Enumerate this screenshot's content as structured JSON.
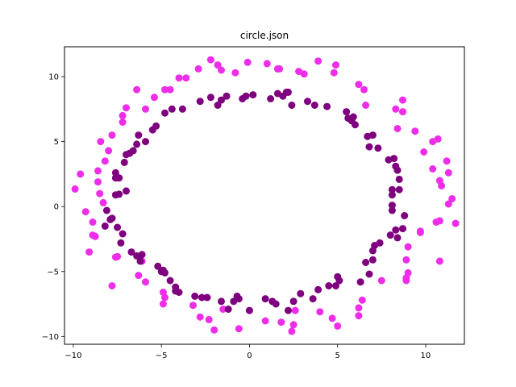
{
  "chart_data": {
    "type": "scatter",
    "title": "circle.json",
    "xlabel": "",
    "ylabel": "",
    "xlim": [
      -10.5,
      12.2
    ],
    "ylim": [
      -10.6,
      12.3
    ],
    "xticks": [
      -10,
      -5,
      0,
      5,
      10
    ],
    "xtick_labels": [
      "−10",
      "−5",
      "0",
      "5",
      "10"
    ],
    "yticks": [
      -10,
      -5,
      0,
      5,
      10
    ],
    "ytick_labels": [
      "−10",
      "−5",
      "0",
      "5",
      "10"
    ],
    "grid": false,
    "legend": false,
    "series": [
      {
        "color": "#ee2de9",
        "points": [
          [
            -9.9,
            1.35
          ],
          [
            -9.6,
            2.5
          ],
          [
            -9.3,
            -0.4
          ],
          [
            -9.1,
            -3.5
          ],
          [
            -8.9,
            -1.2
          ],
          [
            -8.9,
            -2.2
          ],
          [
            -8.75,
            -2.3
          ],
          [
            -8.6,
            1.9
          ],
          [
            -8.6,
            2.75
          ],
          [
            -8.5,
            1.0
          ],
          [
            -8.45,
            5.0
          ],
          [
            -8.3,
            0.3
          ],
          [
            -8.2,
            3.5
          ],
          [
            -8.0,
            4.3
          ],
          [
            -7.8,
            5.5
          ],
          [
            -7.8,
            -6.1
          ],
          [
            -7.6,
            -3.9
          ],
          [
            -7.5,
            -3.85
          ],
          [
            -7.2,
            6.5
          ],
          [
            -7.2,
            7.0
          ],
          [
            -7.0,
            7.6
          ],
          [
            -6.4,
            9.0
          ],
          [
            -6.3,
            -5.3
          ],
          [
            -6.1,
            -4.2
          ],
          [
            -5.9,
            -5.8
          ],
          [
            -5.9,
            7.5
          ],
          [
            -5.4,
            8.4
          ],
          [
            -4.9,
            -6.6
          ],
          [
            -4.9,
            -7.5
          ],
          [
            -4.8,
            -7.0
          ],
          [
            -4.8,
            9.0
          ],
          [
            -4.5,
            9.0
          ],
          [
            -4.0,
            9.9
          ],
          [
            -3.6,
            9.9
          ],
          [
            -3.2,
            -7.6
          ],
          [
            -2.9,
            10.6
          ],
          [
            -2.8,
            -8.5
          ],
          [
            -2.3,
            -8.7
          ],
          [
            -2.2,
            11.3
          ],
          [
            -2.0,
            -9.5
          ],
          [
            -1.8,
            10.9
          ],
          [
            -1.6,
            10.5
          ],
          [
            -1.5,
            -7.9
          ],
          [
            -0.8,
            10.3
          ],
          [
            -0.6,
            -9.4
          ],
          [
            -0.1,
            11.1
          ],
          [
            0.9,
            -8.8
          ],
          [
            1.0,
            11.0
          ],
          [
            1.6,
            10.6
          ],
          [
            1.7,
            10.6
          ],
          [
            1.8,
            -8.9
          ],
          [
            2.4,
            -9.6
          ],
          [
            2.5,
            -9.1
          ],
          [
            2.6,
            -8.0
          ],
          [
            2.8,
            10.4
          ],
          [
            3.1,
            10.2
          ],
          [
            3.9,
            11.2
          ],
          [
            4.0,
            -8.1
          ],
          [
            4.7,
            -8.6
          ],
          [
            4.8,
            10.3
          ],
          [
            4.9,
            10.9
          ],
          [
            5.0,
            -9.2
          ],
          [
            6.2,
            -7.8
          ],
          [
            6.2,
            -8.4
          ],
          [
            6.2,
            9.4
          ],
          [
            6.4,
            -7.2
          ],
          [
            6.5,
            9.0
          ],
          [
            6.6,
            7.8
          ],
          [
            7.5,
            -5.7
          ],
          [
            8.3,
            7.5
          ],
          [
            8.4,
            6.0
          ],
          [
            8.7,
            8.2
          ],
          [
            8.7,
            7.3
          ],
          [
            8.9,
            -4.1
          ],
          [
            8.9,
            -5.5
          ],
          [
            8.9,
            -5.7
          ],
          [
            9.0,
            -5.1
          ],
          [
            9.0,
            -3.1
          ],
          [
            9.4,
            5.8
          ],
          [
            9.7,
            -1.9
          ],
          [
            9.7,
            -2.0
          ],
          [
            9.9,
            4.2
          ],
          [
            10.4,
            5.0
          ],
          [
            10.4,
            2.9
          ],
          [
            10.6,
            -1.2
          ],
          [
            10.7,
            5.2
          ],
          [
            10.8,
            -1.1
          ],
          [
            10.8,
            2.0
          ],
          [
            10.8,
            -4.2
          ],
          [
            10.9,
            1.6
          ],
          [
            11.2,
            3.5
          ],
          [
            11.3,
            2.6
          ],
          [
            11.3,
            0.2
          ],
          [
            11.5,
            0.6
          ],
          [
            11.7,
            -1.3
          ]
        ]
      },
      {
        "color": "#7f007f",
        "points": [
          [
            -8.2,
            -1.5
          ],
          [
            -8.1,
            -0.3
          ],
          [
            -7.9,
            -1.0
          ],
          [
            -7.8,
            -0.9
          ],
          [
            -7.6,
            0.9
          ],
          [
            -7.6,
            2.6
          ],
          [
            -7.6,
            2.2
          ],
          [
            -7.5,
            -1.6
          ],
          [
            -7.4,
            2.2
          ],
          [
            -7.4,
            0.95
          ],
          [
            -7.3,
            -2.8
          ],
          [
            -7.2,
            -2.1
          ],
          [
            -7.1,
            3.4
          ],
          [
            -7.0,
            1.2
          ],
          [
            -7.0,
            4.0
          ],
          [
            -6.8,
            4.1
          ],
          [
            -6.7,
            -3.5
          ],
          [
            -6.6,
            4.3
          ],
          [
            -6.4,
            -3.8
          ],
          [
            -6.4,
            4.8
          ],
          [
            -6.3,
            5.5
          ],
          [
            -6.2,
            -4.2
          ],
          [
            -6.1,
            -3.7
          ],
          [
            -5.9,
            5.0
          ],
          [
            -5.5,
            5.9
          ],
          [
            -5.3,
            6.2
          ],
          [
            -5.2,
            -4.6
          ],
          [
            -5.0,
            -5.0
          ],
          [
            -4.9,
            -4.9
          ],
          [
            -4.8,
            -5.1
          ],
          [
            -4.8,
            7.2
          ],
          [
            -4.5,
            -5.7
          ],
          [
            -4.4,
            7.5
          ],
          [
            -4.2,
            -6.2
          ],
          [
            -4.2,
            -6.5
          ],
          [
            -4.0,
            -6.6
          ],
          [
            -3.8,
            7.5
          ],
          [
            -3.1,
            -6.9
          ],
          [
            -2.8,
            8.1
          ],
          [
            -2.7,
            -7.0
          ],
          [
            -2.4,
            -7.0
          ],
          [
            -2.2,
            8.4
          ],
          [
            -1.8,
            7.8
          ],
          [
            -1.6,
            8.2
          ],
          [
            -1.6,
            -7.3
          ],
          [
            -1.3,
            8.5
          ],
          [
            -1.2,
            -7.9
          ],
          [
            -0.9,
            -7.3
          ],
          [
            -0.7,
            -6.9
          ],
          [
            -0.6,
            -7.1
          ],
          [
            -0.4,
            8.3
          ],
          [
            -0.2,
            8.5
          ],
          [
            0.0,
            -8.0
          ],
          [
            0.2,
            8.6
          ],
          [
            0.9,
            -7.1
          ],
          [
            1.2,
            8.3
          ],
          [
            1.3,
            -7.3
          ],
          [
            1.5,
            -7.5
          ],
          [
            1.6,
            8.7
          ],
          [
            1.9,
            8.5
          ],
          [
            2.1,
            8.8
          ],
          [
            2.2,
            8.8
          ],
          [
            2.2,
            -8.0
          ],
          [
            2.4,
            7.8
          ],
          [
            2.5,
            -7.3
          ],
          [
            2.9,
            -6.7
          ],
          [
            3.3,
            8.1
          ],
          [
            3.6,
            -7.1
          ],
          [
            3.7,
            7.8
          ],
          [
            3.9,
            -6.4
          ],
          [
            4.4,
            7.7
          ],
          [
            4.5,
            -6.1
          ],
          [
            4.9,
            -6.1
          ],
          [
            5.0,
            -5.4
          ],
          [
            5.1,
            -5.7
          ],
          [
            5.5,
            7.3
          ],
          [
            5.6,
            6.8
          ],
          [
            5.8,
            6.6
          ],
          [
            5.9,
            6.9
          ],
          [
            6.0,
            6.3
          ],
          [
            6.3,
            -5.8
          ],
          [
            6.6,
            -4.3
          ],
          [
            6.7,
            5.4
          ],
          [
            6.8,
            -5.2
          ],
          [
            6.8,
            4.6
          ],
          [
            7.0,
            -4.1
          ],
          [
            7.0,
            -3.4
          ],
          [
            7.0,
            5.5
          ],
          [
            7.1,
            -3.0
          ],
          [
            7.3,
            4.5
          ],
          [
            7.4,
            -2.8
          ],
          [
            7.9,
            3.6
          ],
          [
            8.0,
            -2.2
          ],
          [
            8.1,
            1.3
          ],
          [
            8.1,
            0.9
          ],
          [
            8.1,
            0.1
          ],
          [
            8.1,
            -0.3
          ],
          [
            8.2,
            3.7
          ],
          [
            8.3,
            3.1
          ],
          [
            8.3,
            -1.8
          ],
          [
            8.4,
            -2.4
          ],
          [
            8.4,
            2.8
          ],
          [
            8.5,
            1.3
          ],
          [
            8.5,
            2.1
          ],
          [
            8.7,
            -1.7
          ],
          [
            8.8,
            -0.7
          ]
        ]
      }
    ]
  }
}
